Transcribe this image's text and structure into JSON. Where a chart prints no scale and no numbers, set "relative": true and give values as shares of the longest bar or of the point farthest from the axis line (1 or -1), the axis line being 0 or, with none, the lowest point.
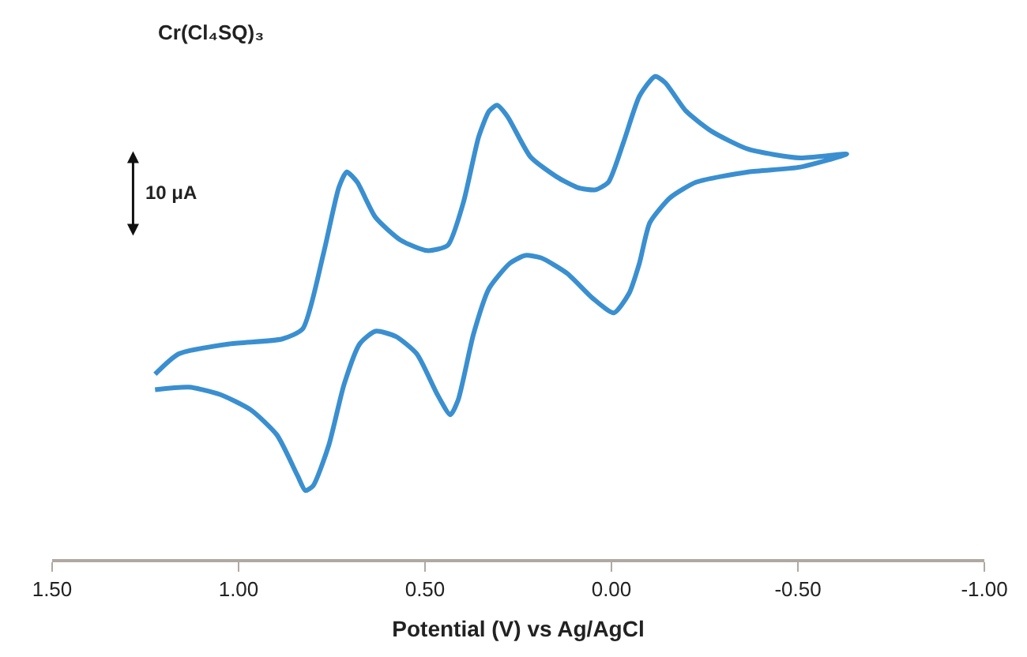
{
  "chart_data": {
    "type": "line",
    "title": "Cr(Cl₄SQ)₃",
    "xlabel": "Potential (V) vs Ag/AgCl",
    "relative": true,
    "marker": "none",
    "line_style": "solid",
    "annotations": [
      "10 μA"
    ],
    "xlim": [
      1.5,
      -1.0
    ],
    "xticks": [
      {
        "value": 1.5,
        "label": "1.50"
      },
      {
        "value": 1.0,
        "label": "1.00"
      },
      {
        "value": 0.5,
        "label": "0.50"
      },
      {
        "value": 0.0,
        "label": "0.00"
      },
      {
        "value": -0.5,
        "label": "-0.50"
      },
      {
        "value": -1.0,
        "label": "-1.00"
      }
    ],
    "series": [
      {
        "color": "#3a8fd0",
        "x": [
          1.224,
          1.161,
          1.022,
          0.883,
          0.828,
          0.772,
          0.731,
          0.71,
          0.682,
          0.633,
          0.564,
          0.494,
          0.439,
          0.397,
          0.356,
          0.328,
          0.307,
          0.279,
          0.217,
          0.147,
          0.092,
          0.043,
          0.008,
          -0.033,
          -0.075,
          -0.117,
          -0.144,
          -0.2,
          -0.269,
          -0.367,
          -0.506,
          -0.631,
          -0.506,
          -0.367,
          -0.228,
          -0.158,
          -0.103,
          -0.075,
          -0.047,
          -0.006,
          0.05,
          0.119,
          0.189,
          0.231,
          0.272,
          0.328,
          0.37,
          0.411,
          0.432,
          0.467,
          0.522,
          0.578,
          0.633,
          0.675,
          0.717,
          0.758,
          0.8,
          0.821,
          0.842,
          0.897,
          0.967,
          1.05,
          1.133,
          1.224
        ],
        "values": [
          0.383,
          0.425,
          0.446,
          0.456,
          0.477,
          0.634,
          0.77,
          0.802,
          0.781,
          0.708,
          0.66,
          0.639,
          0.65,
          0.739,
          0.875,
          0.928,
          0.94,
          0.917,
          0.833,
          0.792,
          0.77,
          0.765,
          0.781,
          0.865,
          0.959,
          1.0,
          0.987,
          0.928,
          0.886,
          0.849,
          0.831,
          0.839,
          0.812,
          0.802,
          0.781,
          0.749,
          0.697,
          0.613,
          0.55,
          0.51,
          0.54,
          0.592,
          0.624,
          0.629,
          0.613,
          0.561,
          0.466,
          0.33,
          0.299,
          0.341,
          0.425,
          0.461,
          0.472,
          0.446,
          0.362,
          0.236,
          0.152,
          0.142,
          0.173,
          0.257,
          0.309,
          0.341,
          0.356,
          0.351
        ]
      }
    ]
  }
}
